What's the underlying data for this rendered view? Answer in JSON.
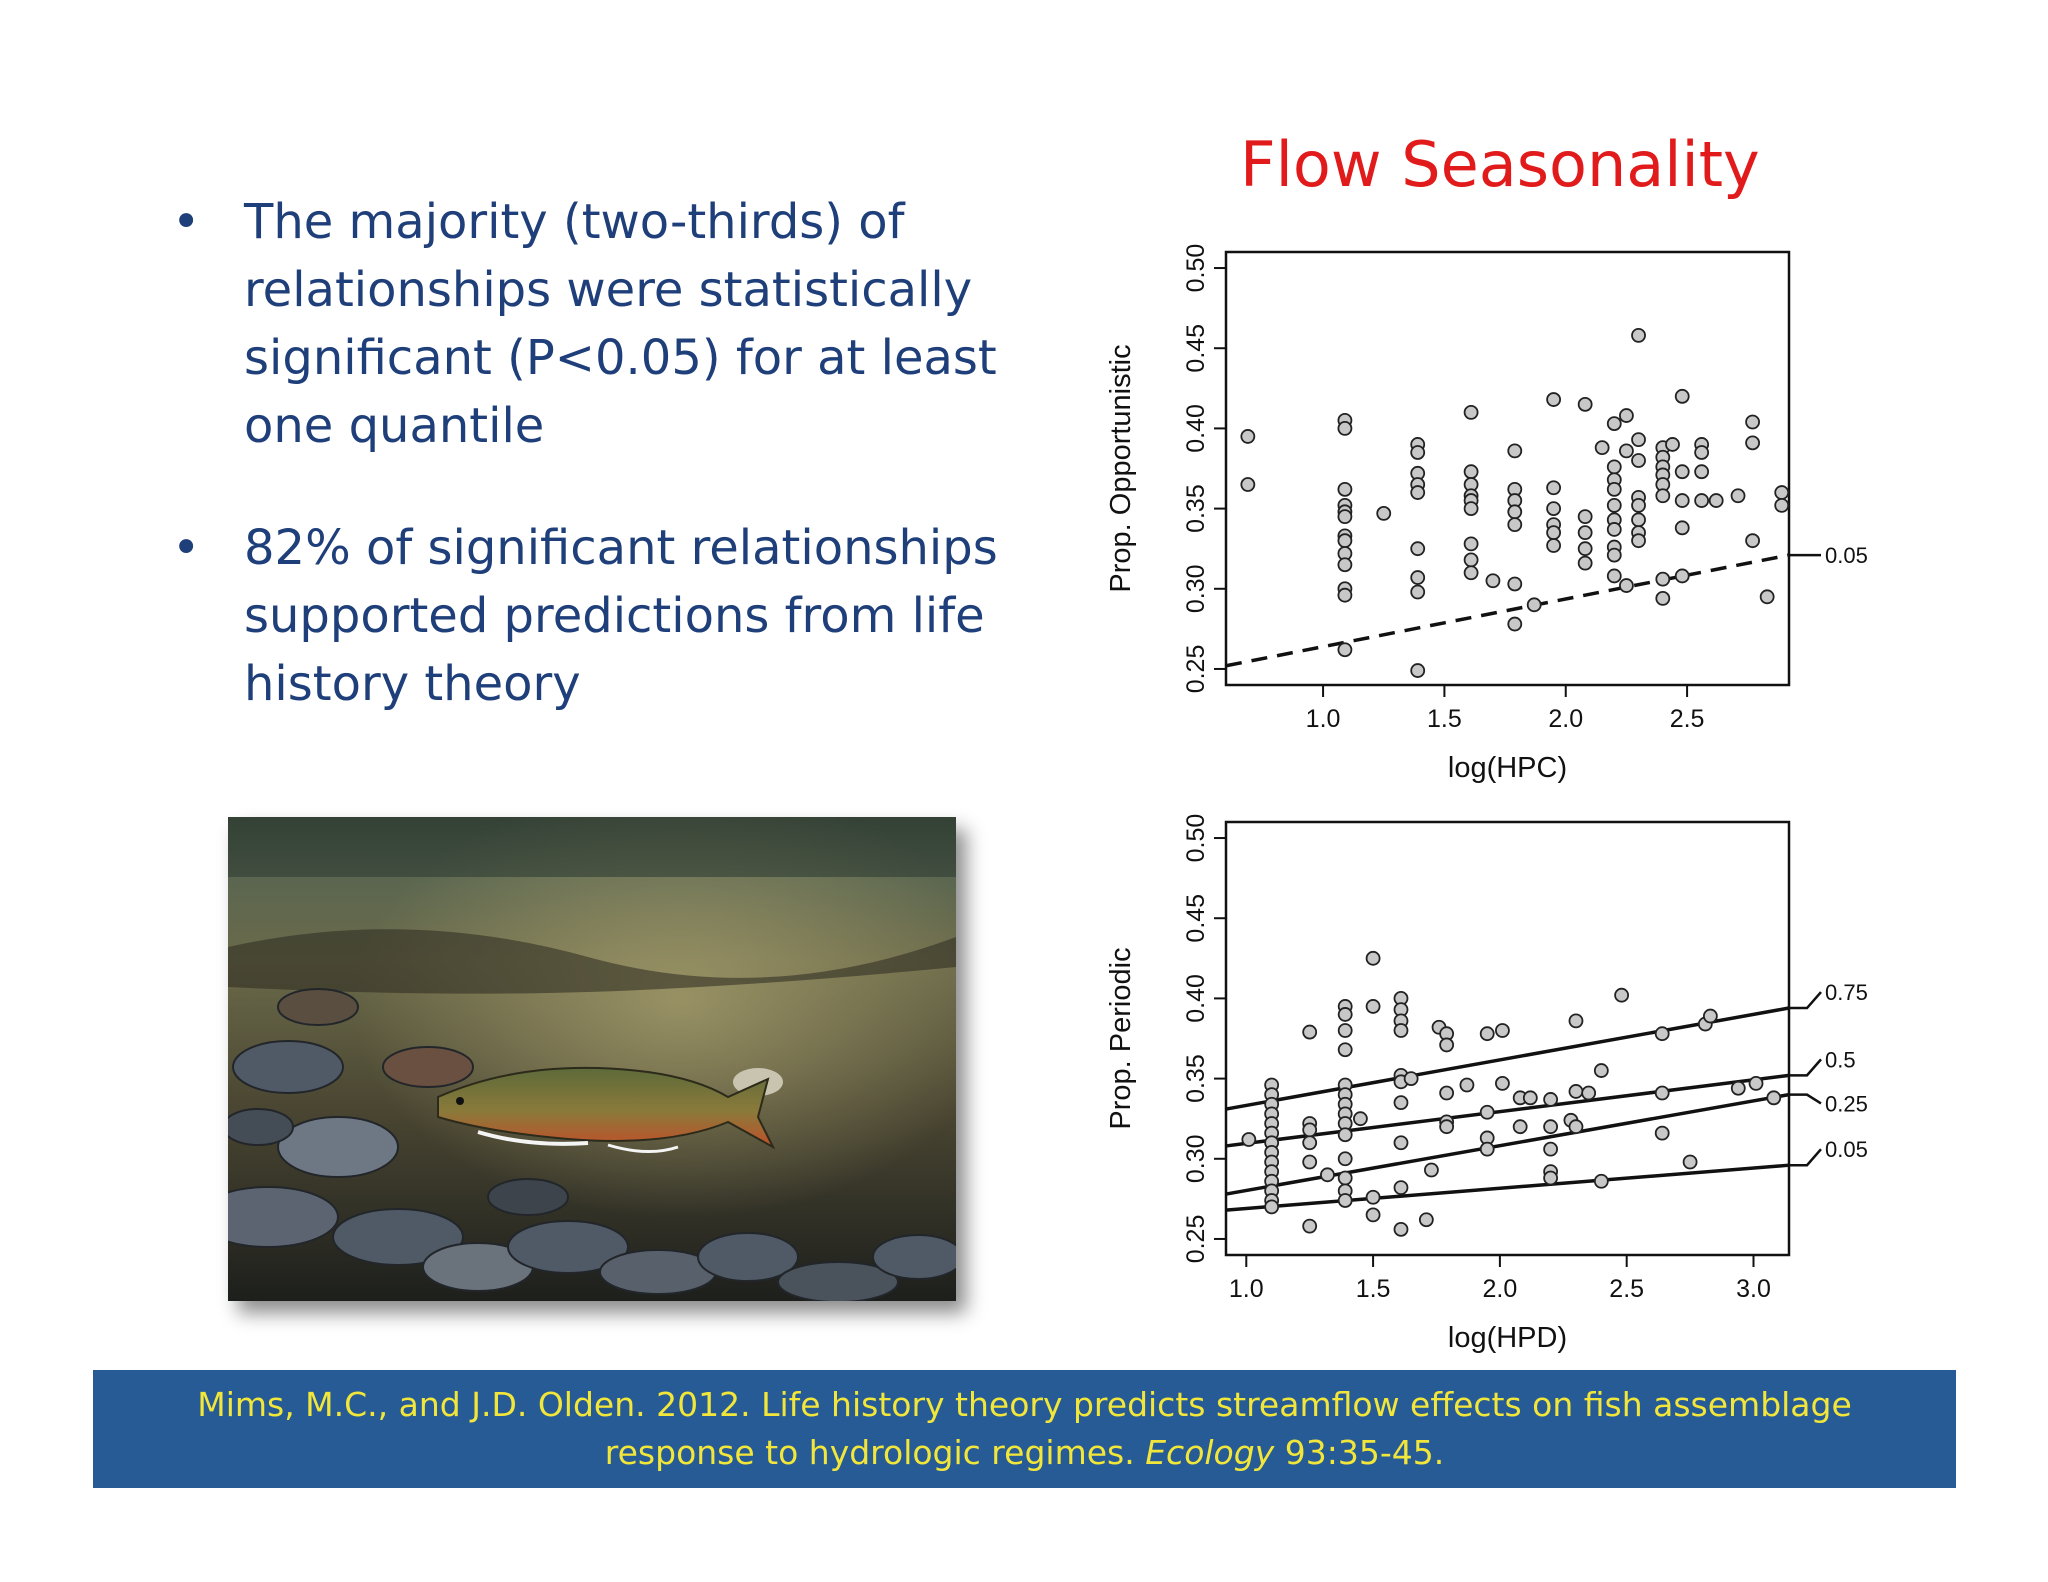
{
  "bullets": [
    {
      "symbol": "•",
      "lines": [
        "The majority (two-thirds) of",
        "relationships were statistically",
        "significant (P<0.05) for at least",
        "one quantile"
      ]
    },
    {
      "symbol": "•",
      "lines": [
        "82% of significant relationships",
        "supported predictions from life",
        "history theory"
      ]
    }
  ],
  "title": "Flow Seasonality",
  "citation": {
    "line1": "Mims, M.C., and J.D. Olden. 2012. Life history theory predicts streamflow effects on fish assemblage",
    "line2_pre": "response to hydrologic regimes. ",
    "journal": "Ecology",
    "line2_post": " 93:35-45."
  },
  "photo": {
    "alt": "underwater-brook-trout-photo"
  },
  "colors": {
    "title": "#e11b1b",
    "bullet_text": "#1f3f7a",
    "citation_bg": "#275b95",
    "citation_text": "#f2e63a",
    "point_fill": "#c8c8c8"
  },
  "chart_data": [
    {
      "type": "scatter",
      "title": "",
      "xlabel": "log(HPC)",
      "ylabel": "Prop. Opportunistic",
      "xlim": [
        0.6,
        2.92
      ],
      "ylim": [
        0.24,
        0.51
      ],
      "xticks": [
        1.0,
        1.5,
        2.0,
        2.5
      ],
      "xtick_labels": [
        "1.0",
        "1.5",
        "2.0",
        "2.5"
      ],
      "yticks": [
        0.25,
        0.3,
        0.35,
        0.4,
        0.45,
        0.5
      ],
      "ytick_labels": [
        "0.25",
        "0.30",
        "0.35",
        "0.40",
        "0.45",
        "0.50"
      ],
      "points": [
        [
          0.69,
          0.395
        ],
        [
          0.69,
          0.365
        ],
        [
          1.09,
          0.405
        ],
        [
          1.09,
          0.4
        ],
        [
          1.09,
          0.362
        ],
        [
          1.09,
          0.352
        ],
        [
          1.09,
          0.348
        ],
        [
          1.09,
          0.345
        ],
        [
          1.09,
          0.333
        ],
        [
          1.09,
          0.33
        ],
        [
          1.09,
          0.322
        ],
        [
          1.09,
          0.315
        ],
        [
          1.09,
          0.3
        ],
        [
          1.09,
          0.296
        ],
        [
          1.09,
          0.262
        ],
        [
          1.25,
          0.347
        ],
        [
          1.39,
          0.39
        ],
        [
          1.39,
          0.385
        ],
        [
          1.39,
          0.372
        ],
        [
          1.39,
          0.365
        ],
        [
          1.39,
          0.36
        ],
        [
          1.39,
          0.325
        ],
        [
          1.39,
          0.307
        ],
        [
          1.39,
          0.298
        ],
        [
          1.39,
          0.249
        ],
        [
          1.61,
          0.41
        ],
        [
          1.61,
          0.373
        ],
        [
          1.61,
          0.365
        ],
        [
          1.61,
          0.358
        ],
        [
          1.61,
          0.355
        ],
        [
          1.61,
          0.35
        ],
        [
          1.61,
          0.328
        ],
        [
          1.61,
          0.318
        ],
        [
          1.61,
          0.31
        ],
        [
          1.7,
          0.305
        ],
        [
          1.79,
          0.386
        ],
        [
          1.79,
          0.362
        ],
        [
          1.79,
          0.355
        ],
        [
          1.79,
          0.348
        ],
        [
          1.79,
          0.34
        ],
        [
          1.79,
          0.303
        ],
        [
          1.79,
          0.278
        ],
        [
          1.87,
          0.29
        ],
        [
          1.95,
          0.418
        ],
        [
          1.95,
          0.363
        ],
        [
          1.95,
          0.35
        ],
        [
          1.95,
          0.34
        ],
        [
          1.95,
          0.335
        ],
        [
          1.95,
          0.327
        ],
        [
          2.08,
          0.415
        ],
        [
          2.08,
          0.345
        ],
        [
          2.08,
          0.335
        ],
        [
          2.08,
          0.325
        ],
        [
          2.08,
          0.316
        ],
        [
          2.15,
          0.388
        ],
        [
          2.2,
          0.403
        ],
        [
          2.2,
          0.376
        ],
        [
          2.2,
          0.368
        ],
        [
          2.2,
          0.362
        ],
        [
          2.2,
          0.352
        ],
        [
          2.2,
          0.343
        ],
        [
          2.2,
          0.337
        ],
        [
          2.2,
          0.326
        ],
        [
          2.2,
          0.321
        ],
        [
          2.2,
          0.308
        ],
        [
          2.25,
          0.408
        ],
        [
          2.25,
          0.386
        ],
        [
          2.25,
          0.302
        ],
        [
          2.3,
          0.458
        ],
        [
          2.3,
          0.393
        ],
        [
          2.3,
          0.38
        ],
        [
          2.3,
          0.357
        ],
        [
          2.3,
          0.352
        ],
        [
          2.3,
          0.343
        ],
        [
          2.3,
          0.335
        ],
        [
          2.3,
          0.33
        ],
        [
          2.4,
          0.388
        ],
        [
          2.4,
          0.382
        ],
        [
          2.4,
          0.376
        ],
        [
          2.4,
          0.371
        ],
        [
          2.4,
          0.365
        ],
        [
          2.4,
          0.358
        ],
        [
          2.4,
          0.306
        ],
        [
          2.4,
          0.294
        ],
        [
          2.44,
          0.39
        ],
        [
          2.48,
          0.42
        ],
        [
          2.48,
          0.373
        ],
        [
          2.48,
          0.355
        ],
        [
          2.48,
          0.338
        ],
        [
          2.48,
          0.308
        ],
        [
          2.56,
          0.39
        ],
        [
          2.56,
          0.385
        ],
        [
          2.56,
          0.373
        ],
        [
          2.56,
          0.355
        ],
        [
          2.62,
          0.355
        ],
        [
          2.71,
          0.358
        ],
        [
          2.77,
          0.404
        ],
        [
          2.77,
          0.391
        ],
        [
          2.77,
          0.33
        ],
        [
          2.83,
          0.295
        ],
        [
          2.89,
          0.36
        ],
        [
          2.89,
          0.352
        ]
      ],
      "quantile_lines": [
        {
          "label": "0.05",
          "style": "dashed",
          "from": [
            0.6,
            0.252
          ],
          "to": [
            2.92,
            0.321
          ]
        }
      ]
    },
    {
      "type": "scatter",
      "title": "",
      "xlabel": "log(HPD)",
      "ylabel": "Prop. Periodic",
      "xlim": [
        0.92,
        3.14
      ],
      "ylim": [
        0.24,
        0.51
      ],
      "xticks": [
        1.0,
        1.5,
        2.0,
        2.5,
        3.0
      ],
      "xtick_labels": [
        "1.0",
        "1.5",
        "2.0",
        "2.5",
        "3.0"
      ],
      "yticks": [
        0.25,
        0.3,
        0.35,
        0.4,
        0.45,
        0.5
      ],
      "ytick_labels": [
        "0.25",
        "0.30",
        "0.35",
        "0.40",
        "0.45",
        "0.50"
      ],
      "points": [
        [
          1.01,
          0.312
        ],
        [
          1.1,
          0.346
        ],
        [
          1.1,
          0.34
        ],
        [
          1.1,
          0.334
        ],
        [
          1.1,
          0.328
        ],
        [
          1.1,
          0.322
        ],
        [
          1.1,
          0.316
        ],
        [
          1.1,
          0.31
        ],
        [
          1.1,
          0.304
        ],
        [
          1.1,
          0.298
        ],
        [
          1.1,
          0.292
        ],
        [
          1.1,
          0.286
        ],
        [
          1.1,
          0.28
        ],
        [
          1.1,
          0.274
        ],
        [
          1.1,
          0.27
        ],
        [
          1.25,
          0.379
        ],
        [
          1.25,
          0.322
        ],
        [
          1.25,
          0.318
        ],
        [
          1.25,
          0.31
        ],
        [
          1.25,
          0.298
        ],
        [
          1.25,
          0.258
        ],
        [
          1.32,
          0.29
        ],
        [
          1.39,
          0.395
        ],
        [
          1.39,
          0.39
        ],
        [
          1.39,
          0.38
        ],
        [
          1.39,
          0.368
        ],
        [
          1.39,
          0.346
        ],
        [
          1.39,
          0.34
        ],
        [
          1.39,
          0.334
        ],
        [
          1.39,
          0.328
        ],
        [
          1.39,
          0.322
        ],
        [
          1.39,
          0.315
        ],
        [
          1.39,
          0.3
        ],
        [
          1.39,
          0.288
        ],
        [
          1.39,
          0.28
        ],
        [
          1.39,
          0.274
        ],
        [
          1.45,
          0.325
        ],
        [
          1.5,
          0.425
        ],
        [
          1.5,
          0.395
        ],
        [
          1.5,
          0.276
        ],
        [
          1.5,
          0.265
        ],
        [
          1.61,
          0.4
        ],
        [
          1.61,
          0.393
        ],
        [
          1.61,
          0.386
        ],
        [
          1.61,
          0.38
        ],
        [
          1.61,
          0.352
        ],
        [
          1.61,
          0.348
        ],
        [
          1.61,
          0.335
        ],
        [
          1.61,
          0.31
        ],
        [
          1.61,
          0.282
        ],
        [
          1.61,
          0.256
        ],
        [
          1.65,
          0.35
        ],
        [
          1.71,
          0.262
        ],
        [
          1.73,
          0.293
        ],
        [
          1.76,
          0.382
        ],
        [
          1.79,
          0.378
        ],
        [
          1.79,
          0.371
        ],
        [
          1.79,
          0.341
        ],
        [
          1.79,
          0.323
        ],
        [
          1.79,
          0.32
        ],
        [
          1.87,
          0.346
        ],
        [
          1.95,
          0.378
        ],
        [
          1.95,
          0.329
        ],
        [
          1.95,
          0.313
        ],
        [
          1.95,
          0.306
        ],
        [
          2.01,
          0.38
        ],
        [
          2.01,
          0.347
        ],
        [
          2.08,
          0.338
        ],
        [
          2.08,
          0.32
        ],
        [
          2.12,
          0.338
        ],
        [
          2.2,
          0.337
        ],
        [
          2.2,
          0.32
        ],
        [
          2.2,
          0.306
        ],
        [
          2.2,
          0.292
        ],
        [
          2.2,
          0.288
        ],
        [
          2.28,
          0.324
        ],
        [
          2.3,
          0.386
        ],
        [
          2.3,
          0.342
        ],
        [
          2.3,
          0.32
        ],
        [
          2.35,
          0.341
        ],
        [
          2.4,
          0.355
        ],
        [
          2.4,
          0.286
        ],
        [
          2.48,
          0.402
        ],
        [
          2.64,
          0.378
        ],
        [
          2.64,
          0.341
        ],
        [
          2.64,
          0.316
        ],
        [
          2.75,
          0.298
        ],
        [
          2.81,
          0.384
        ],
        [
          2.83,
          0.389
        ],
        [
          2.94,
          0.344
        ],
        [
          3.01,
          0.347
        ],
        [
          3.08,
          0.338
        ]
      ],
      "quantile_lines": [
        {
          "label": "0.75",
          "style": "solid",
          "from": [
            0.92,
            0.331
          ],
          "to": [
            3.14,
            0.394
          ]
        },
        {
          "label": "0.5",
          "style": "solid",
          "from": [
            0.92,
            0.308
          ],
          "to": [
            3.14,
            0.352
          ]
        },
        {
          "label": "0.25",
          "style": "solid",
          "from": [
            0.92,
            0.278
          ],
          "to": [
            3.14,
            0.34
          ]
        },
        {
          "label": "0.05",
          "style": "solid",
          "from": [
            0.92,
            0.268
          ],
          "to": [
            3.14,
            0.296
          ]
        }
      ]
    }
  ]
}
